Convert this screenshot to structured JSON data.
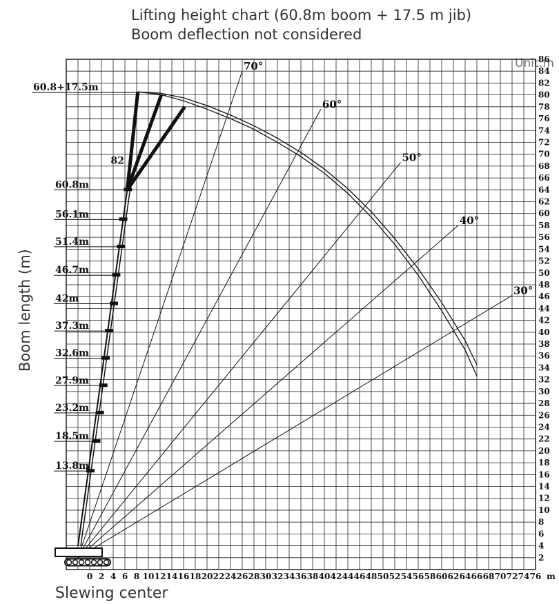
{
  "header": {
    "title": "Lifting height chart (60.8m boom + 17.5 m jib)",
    "subtitle": "Boom deflection not considered",
    "unit": "Unit:m"
  },
  "axes": {
    "ylabel": "Boom length (m)",
    "xlabel": "Slewing center",
    "x_unit": "m"
  },
  "chart_data": {
    "type": "line",
    "title": "Lifting height chart (60.8m boom + 17.5 m jib)",
    "subtitle": "Boom deflection not considered",
    "xlabel": "Slewing center",
    "ylabel": "Boom length (m)",
    "xlim": [
      -4,
      76
    ],
    "ylim": [
      0,
      86
    ],
    "x_ticks": [
      0,
      2,
      4,
      6,
      8,
      10,
      12,
      14,
      16,
      18,
      20,
      22,
      24,
      26,
      28,
      30,
      32,
      34,
      36,
      38,
      40,
      42,
      44,
      46,
      48,
      50,
      52,
      54,
      56,
      58,
      60,
      62,
      64,
      66,
      68,
      70,
      72,
      74,
      76
    ],
    "y_ticks": [
      2,
      4,
      6,
      8,
      10,
      12,
      14,
      16,
      18,
      20,
      22,
      24,
      26,
      28,
      30,
      32,
      34,
      36,
      38,
      40,
      42,
      44,
      46,
      48,
      50,
      52,
      54,
      56,
      58,
      60,
      62,
      64,
      66,
      68,
      70,
      72,
      74,
      76,
      78,
      80,
      82,
      84,
      86
    ],
    "grid": true,
    "boom_lengths": [
      {
        "label": "13.8m",
        "height": 16.6,
        "radius": 0
      },
      {
        "label": "18.5m",
        "height": 21.6,
        "radius": 1
      },
      {
        "label": "23.2m",
        "height": 26.4,
        "radius": 1.6
      },
      {
        "label": "27.9m",
        "height": 31,
        "radius": 2.2
      },
      {
        "label": "32.6m",
        "height": 35.6,
        "radius": 2.6
      },
      {
        "label": "37.3m",
        "height": 40.2,
        "radius": 3.2
      },
      {
        "label": "42m",
        "height": 44.8,
        "radius": 4
      },
      {
        "label": "46.7m",
        "height": 49.6,
        "radius": 4.4
      },
      {
        "label": "51.4m",
        "height": 54.4,
        "radius": 5.2
      },
      {
        "label": "56.1m",
        "height": 59,
        "radius": 5.6
      },
      {
        "label": "60.8m",
        "height": 64,
        "radius": 6.4
      }
    ],
    "jib_label": "60.8+17.5m",
    "jib_height": 80.4,
    "boom_angle_label": "82",
    "jib_tips": [
      [
        8.2,
        80.5
      ],
      [
        12.2,
        80
      ],
      [
        16.2,
        78
      ]
    ],
    "angle_lines": [
      {
        "label": "70°",
        "end": [
          26,
          84
        ]
      },
      {
        "label": "60°",
        "end": [
          39.4,
          77.6
        ]
      },
      {
        "label": "50°",
        "end": [
          53,
          68.6
        ]
      },
      {
        "label": "40°",
        "end": [
          62.8,
          58
        ]
      },
      {
        "label": "30°",
        "end": [
          72,
          46.2
        ]
      }
    ],
    "envelope": [
      [
        8.2,
        80.5
      ],
      [
        12,
        80.1
      ],
      [
        16,
        79
      ],
      [
        20,
        77.6
      ],
      [
        24,
        76
      ],
      [
        28,
        74.2
      ],
      [
        32,
        72
      ],
      [
        36,
        69.6
      ],
      [
        40,
        66.8
      ],
      [
        44,
        63.4
      ],
      [
        48,
        59.4
      ],
      [
        52,
        54.8
      ],
      [
        56,
        49.6
      ],
      [
        60,
        43.6
      ],
      [
        64,
        37
      ],
      [
        66,
        32.6
      ]
    ],
    "envelope_outer": [
      [
        8.2,
        80.5
      ],
      [
        12,
        80.3
      ],
      [
        16,
        79.5
      ],
      [
        20,
        78.2
      ],
      [
        24,
        76.6
      ],
      [
        28,
        74.8
      ],
      [
        32,
        72.7
      ],
      [
        36,
        70.3
      ],
      [
        40,
        67.5
      ],
      [
        44,
        64.2
      ],
      [
        48,
        60.3
      ],
      [
        52,
        55.8
      ],
      [
        56,
        50.7
      ],
      [
        60,
        45
      ],
      [
        64,
        38.6
      ],
      [
        66,
        34.5
      ]
    ]
  }
}
